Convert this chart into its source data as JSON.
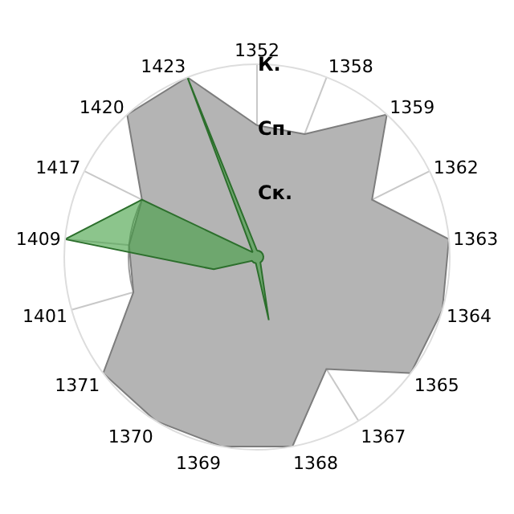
{
  "chart_data": {
    "type": "radar",
    "categories": [
      "1352",
      "1358",
      "1359",
      "1362",
      "1363",
      "1364",
      "1365",
      "1367",
      "1368",
      "1369",
      "1370",
      "1371",
      "1401",
      "1409",
      "1417",
      "1420",
      "1423"
    ],
    "series": [
      {
        "color": "#b4b4b4",
        "values": [
          2.05,
          2.05,
          3,
          2,
          3,
          3,
          3,
          2.05,
          3,
          3,
          3,
          3,
          2,
          2,
          2,
          3,
          3
        ]
      },
      {
        "color": "#3f9f3f",
        "values": [
          0.1,
          0.1,
          0.1,
          0.1,
          0.1,
          0.1,
          0.1,
          0.1,
          1,
          0.1,
          0.1,
          0.1,
          0.7,
          3,
          2,
          0.1,
          3
        ]
      }
    ],
    "ylim": [
      0,
      3
    ],
    "yticks": [
      {
        "value": 1,
        "label": "Ск."
      },
      {
        "value": 2,
        "label": "Сп."
      },
      {
        "value": 3,
        "label": "К."
      }
    ],
    "grid": true
  }
}
